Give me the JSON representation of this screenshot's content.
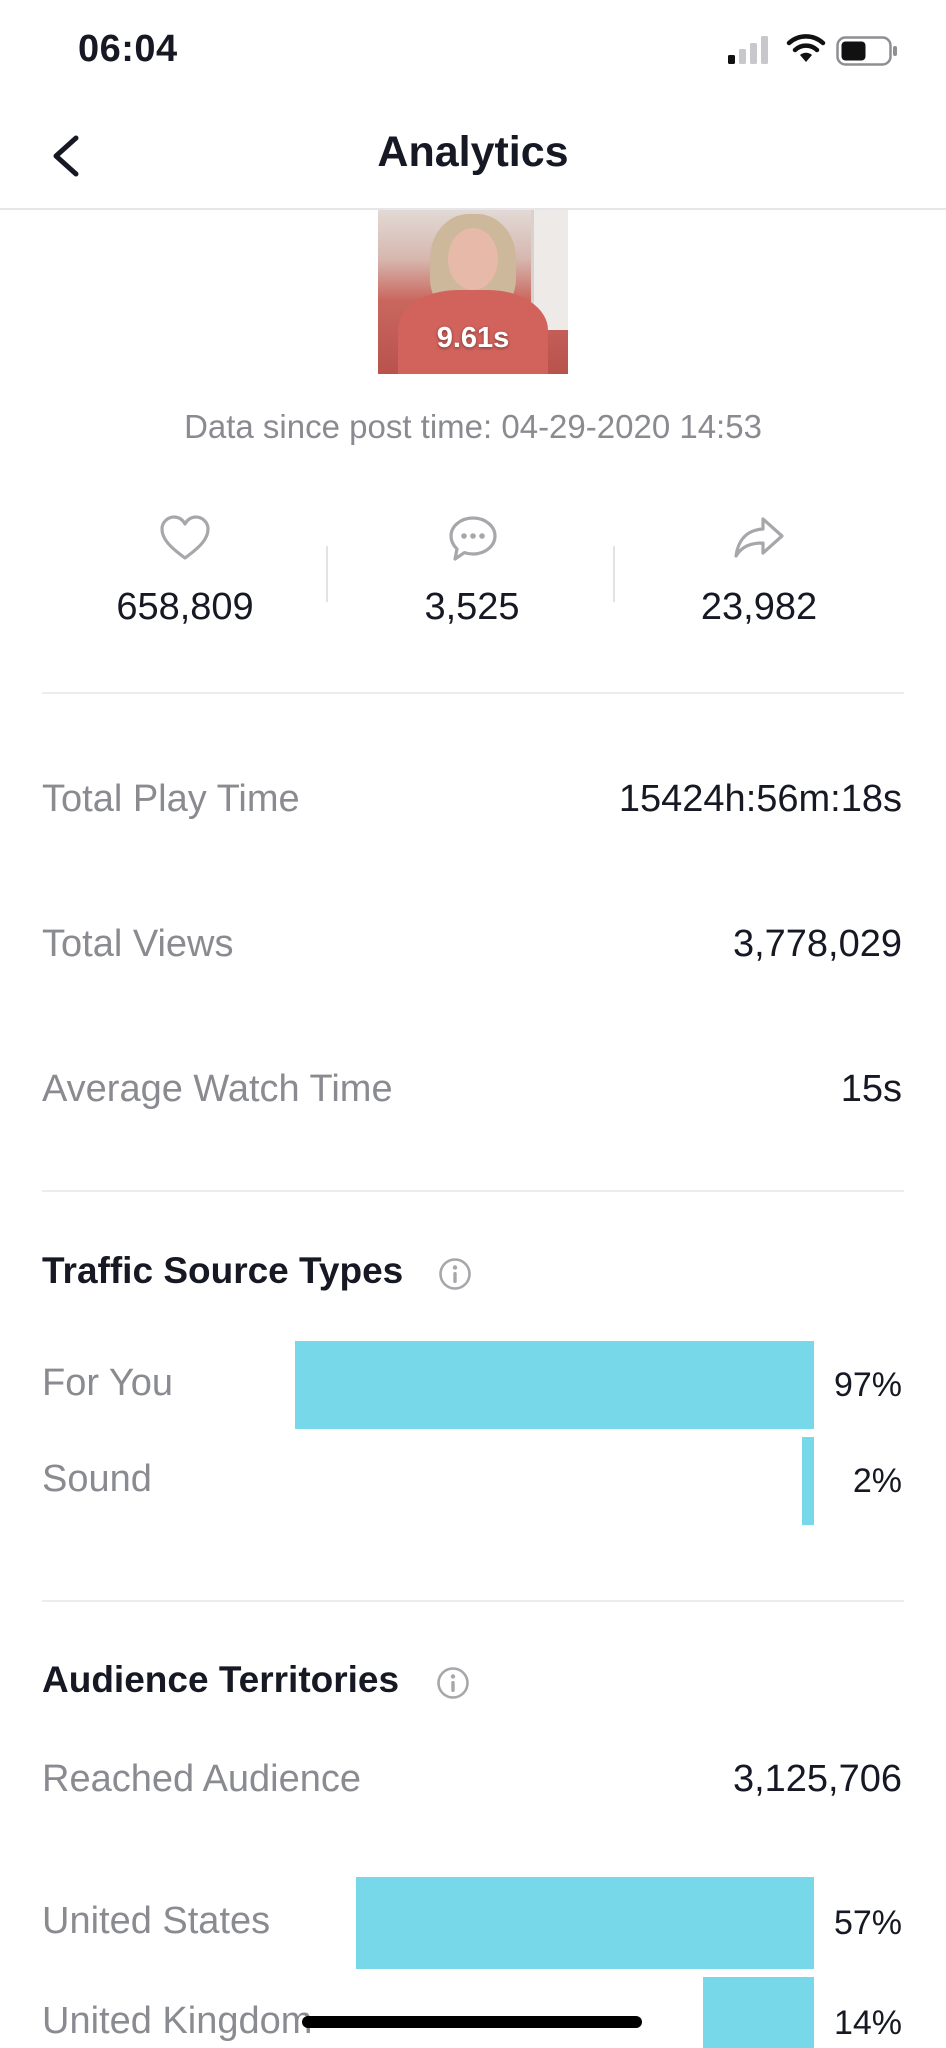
{
  "status_bar": {
    "time": "06:04"
  },
  "nav": {
    "title": "Analytics"
  },
  "video": {
    "duration": "9.61s",
    "data_since": "Data since post time: 04-29-2020 14:53"
  },
  "engagement": {
    "likes": "658,809",
    "comments": "3,525",
    "shares": "23,982"
  },
  "metrics": [
    {
      "label": "Total Play Time",
      "value": "15424h:56m:18s"
    },
    {
      "label": "Total Views",
      "value": "3,778,029"
    },
    {
      "label": "Average Watch Time",
      "value": "15s"
    }
  ],
  "traffic": {
    "title": "Traffic Source Types",
    "items": [
      {
        "label": "For You",
        "percent_text": "97%",
        "percent": 97
      },
      {
        "label": "Sound",
        "percent_text": "2%",
        "percent": 2
      }
    ]
  },
  "audience": {
    "title": "Audience Territories",
    "reached_label": "Reached Audience",
    "reached_value": "3,125,706",
    "items": [
      {
        "label": "United States",
        "percent_text": "57%",
        "percent": 57
      },
      {
        "label": "United Kingdom",
        "percent_text": "14%",
        "percent": 14
      }
    ]
  },
  "colors": {
    "bar": "#77d8ea",
    "muted_text": "#8a8b91",
    "text": "#161823"
  },
  "icons": [
    "back-icon",
    "heart-icon",
    "comment-icon",
    "share-icon",
    "info-icon",
    "signal-icon",
    "wifi-icon",
    "battery-icon"
  ]
}
